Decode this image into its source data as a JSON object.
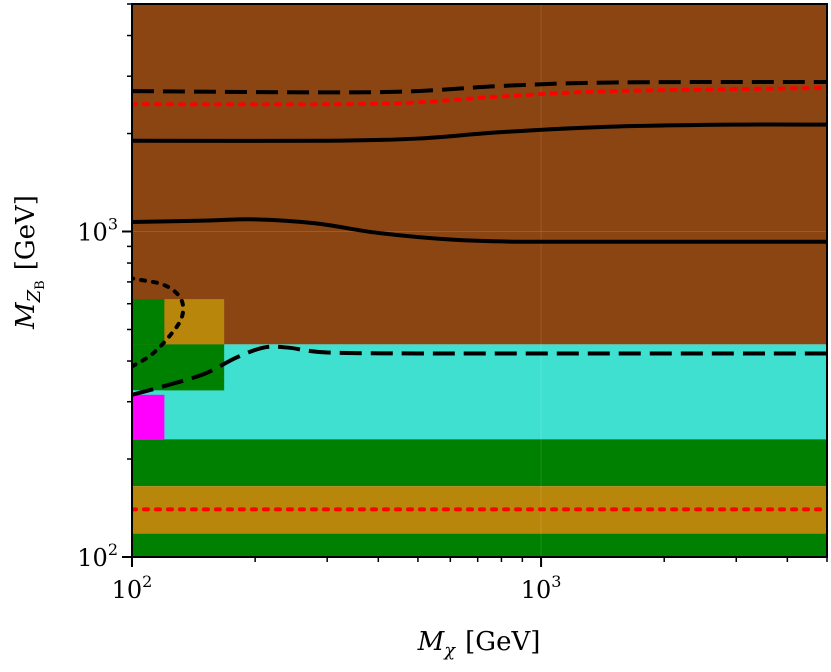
{
  "chart_data": {
    "type": "heatmap",
    "xlabel": {
      "symbol": "M",
      "subscript": "χ",
      "unit": "[GeV]"
    },
    "ylabel": {
      "symbol": "M",
      "subscript": "Z",
      "subsubscript": "B",
      "unit": "[GeV]"
    },
    "x_scale": "log",
    "y_scale": "log",
    "xlim": [
      100,
      5000
    ],
    "ylim": [
      100,
      5000
    ],
    "x_ticks": [
      {
        "value": 100,
        "base": "10",
        "exp": "2"
      },
      {
        "value": 1000,
        "base": "10",
        "exp": "3"
      }
    ],
    "y_ticks": [
      {
        "value": 100,
        "base": "10",
        "exp": "2"
      },
      {
        "value": 1000,
        "base": "10",
        "exp": "3"
      }
    ],
    "colors": {
      "brown": "#8b4513",
      "turquoise": "#40e0d0",
      "green": "#008000",
      "goldenrod": "#b8860b",
      "magenta": "#ff00ff",
      "black": "#000000",
      "red": "#ff0000"
    },
    "regions": [
      {
        "color": "brown",
        "x": [
          100,
          5000
        ],
        "y": [
          450,
          5000
        ]
      },
      {
        "color": "turquoise",
        "x": [
          100,
          5000
        ],
        "y": [
          230,
          450
        ]
      },
      {
        "color": "green",
        "x": [
          100,
          5000
        ],
        "y": [
          165,
          230
        ]
      },
      {
        "color": "goldenrod",
        "x": [
          100,
          5000
        ],
        "y": [
          118,
          165
        ]
      },
      {
        "color": "green",
        "x": [
          100,
          5000
        ],
        "y": [
          100,
          118
        ]
      },
      {
        "color": "green",
        "x": [
          100,
          120
        ],
        "y": [
          450,
          620
        ]
      },
      {
        "color": "goldenrod",
        "x": [
          120,
          168
        ],
        "y": [
          450,
          620
        ]
      },
      {
        "color": "green",
        "x": [
          100,
          168
        ],
        "y": [
          325,
          450
        ]
      },
      {
        "color": "turquoise",
        "x": [
          100,
          120
        ],
        "y": [
          230,
          325
        ]
      },
      {
        "color": "magenta",
        "x": [
          100,
          120
        ],
        "y": [
          230,
          315
        ]
      }
    ],
    "curves": [
      {
        "color": "black",
        "style": "solid",
        "width": 4,
        "points": [
          [
            100,
            1070
          ],
          [
            150,
            1080
          ],
          [
            200,
            1090
          ],
          [
            280,
            1060
          ],
          [
            400,
            990
          ],
          [
            600,
            945
          ],
          [
            900,
            930
          ],
          [
            2000,
            930
          ],
          [
            5000,
            930
          ]
        ]
      },
      {
        "color": "black",
        "style": "solid",
        "width": 4,
        "points": [
          [
            100,
            1900
          ],
          [
            300,
            1900
          ],
          [
            500,
            1930
          ],
          [
            800,
            2020
          ],
          [
            1500,
            2100
          ],
          [
            3000,
            2130
          ],
          [
            5000,
            2130
          ]
        ]
      },
      {
        "color": "black",
        "style": "dashed",
        "width": 4,
        "points": [
          [
            100,
            2700
          ],
          [
            400,
            2680
          ],
          [
            800,
            2800
          ],
          [
            1500,
            2870
          ],
          [
            5000,
            2880
          ]
        ]
      },
      {
        "color": "red",
        "style": "dotted",
        "width": 4,
        "points": [
          [
            100,
            2460
          ],
          [
            400,
            2470
          ],
          [
            800,
            2600
          ],
          [
            1500,
            2700
          ],
          [
            5000,
            2760
          ]
        ]
      },
      {
        "color": "black",
        "style": "dashed",
        "width": 4,
        "points": [
          [
            100,
            315
          ],
          [
            120,
            335
          ],
          [
            150,
            365
          ],
          [
            180,
            410
          ],
          [
            210,
            440
          ],
          [
            240,
            440
          ],
          [
            300,
            425
          ],
          [
            500,
            422
          ],
          [
            1000,
            422
          ],
          [
            5000,
            422
          ]
        ]
      },
      {
        "color": "black",
        "style": "dotted",
        "width": 4,
        "points": [
          [
            100,
            385
          ],
          [
            112,
            420
          ],
          [
            124,
            480
          ],
          [
            132,
            540
          ],
          [
            133,
            600
          ],
          [
            128,
            650
          ],
          [
            118,
            690
          ],
          [
            105,
            710
          ],
          [
            100,
            718
          ]
        ]
      },
      {
        "color": "red",
        "style": "dotted",
        "width": 4,
        "points": [
          [
            100,
            140
          ],
          [
            5000,
            140
          ]
        ]
      }
    ]
  }
}
